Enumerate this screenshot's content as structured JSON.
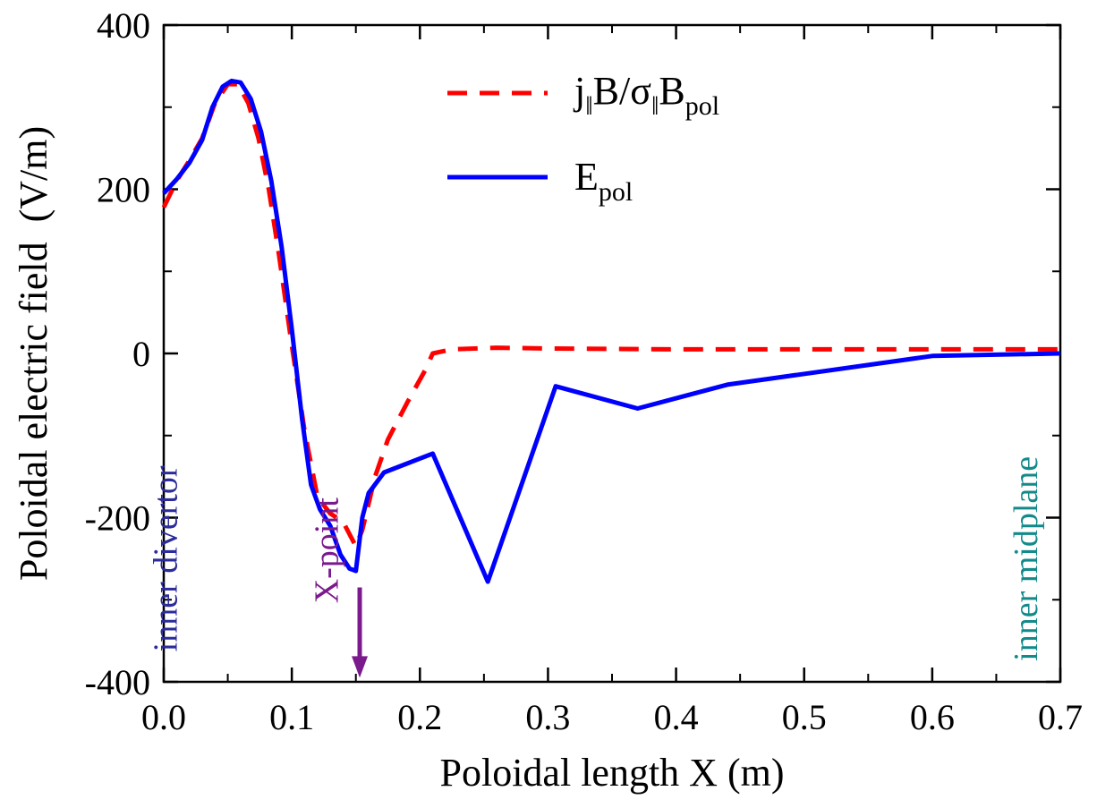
{
  "chart_data": {
    "type": "line",
    "xlabel": "Poloidal length X (m)",
    "ylabel": "Poloidal electric field  (V/m)",
    "xlim": [
      0.0,
      0.7
    ],
    "ylim": [
      -400,
      400
    ],
    "x_ticks": [
      0.0,
      0.1,
      0.2,
      0.3,
      0.4,
      0.5,
      0.6,
      0.7
    ],
    "x_tick_labels": [
      "0.0",
      "0.1",
      "0.2",
      "0.3",
      "0.4",
      "0.5",
      "0.6",
      "0.7"
    ],
    "y_ticks": [
      -400,
      -200,
      0,
      200,
      400
    ],
    "y_tick_labels": [
      "-400",
      "-200",
      "0",
      "200",
      "400"
    ],
    "grid": false,
    "legend_position": "top-right",
    "series": [
      {
        "name": "j‖B/σ‖Bpol",
        "legend_parts": [
          "j",
          "‖",
          "B/σ",
          "‖",
          "B",
          "pol"
        ],
        "color": "#ff0000",
        "style": "dashed",
        "x": [
          0.0,
          0.01,
          0.02,
          0.03,
          0.04,
          0.05,
          0.058,
          0.066,
          0.074,
          0.082,
          0.09,
          0.1,
          0.11,
          0.12,
          0.13,
          0.14,
          0.15,
          0.155,
          0.165,
          0.175,
          0.19,
          0.205,
          0.21,
          0.225,
          0.26,
          0.3,
          0.4,
          0.5,
          0.6,
          0.7
        ],
        "y": [
          178,
          210,
          235,
          262,
          305,
          328,
          328,
          305,
          262,
          200,
          120,
          10,
          -95,
          -175,
          -195,
          -205,
          -235,
          -215,
          -150,
          -105,
          -60,
          -18,
          0,
          5,
          7,
          6,
          5,
          5,
          5,
          5
        ]
      },
      {
        "name": "Epol",
        "legend_parts": [
          "E",
          "pol"
        ],
        "color": "#0000ff",
        "style": "solid",
        "x": [
          0.0,
          0.01,
          0.02,
          0.03,
          0.038,
          0.046,
          0.053,
          0.06,
          0.068,
          0.076,
          0.084,
          0.092,
          0.1,
          0.108,
          0.115,
          0.122,
          0.13,
          0.138,
          0.145,
          0.15,
          0.155,
          0.16,
          0.172,
          0.21,
          0.253,
          0.306,
          0.37,
          0.44,
          0.6,
          0.7
        ],
        "y": [
          195,
          212,
          232,
          260,
          300,
          325,
          332,
          330,
          310,
          270,
          210,
          130,
          30,
          -80,
          -160,
          -190,
          -210,
          -245,
          -262,
          -265,
          -200,
          -170,
          -145,
          -122,
          -278,
          -40,
          -67,
          -38,
          -3,
          0
        ]
      }
    ],
    "annotations": [
      {
        "text": "inner divertor",
        "x": 0.01,
        "y": -250,
        "color": "#2b2b9c",
        "rotation": -90
      },
      {
        "text": "X-point",
        "x": 0.136,
        "y": -240,
        "color": "#7b1a8c",
        "rotation": -90
      },
      {
        "text": "inner midplane",
        "x": 0.682,
        "y": -250,
        "color": "#138a8a",
        "rotation": -90
      }
    ],
    "arrow": {
      "x": 0.153,
      "y_start": -285,
      "y_end": -395,
      "color": "#7b1a8c"
    }
  }
}
